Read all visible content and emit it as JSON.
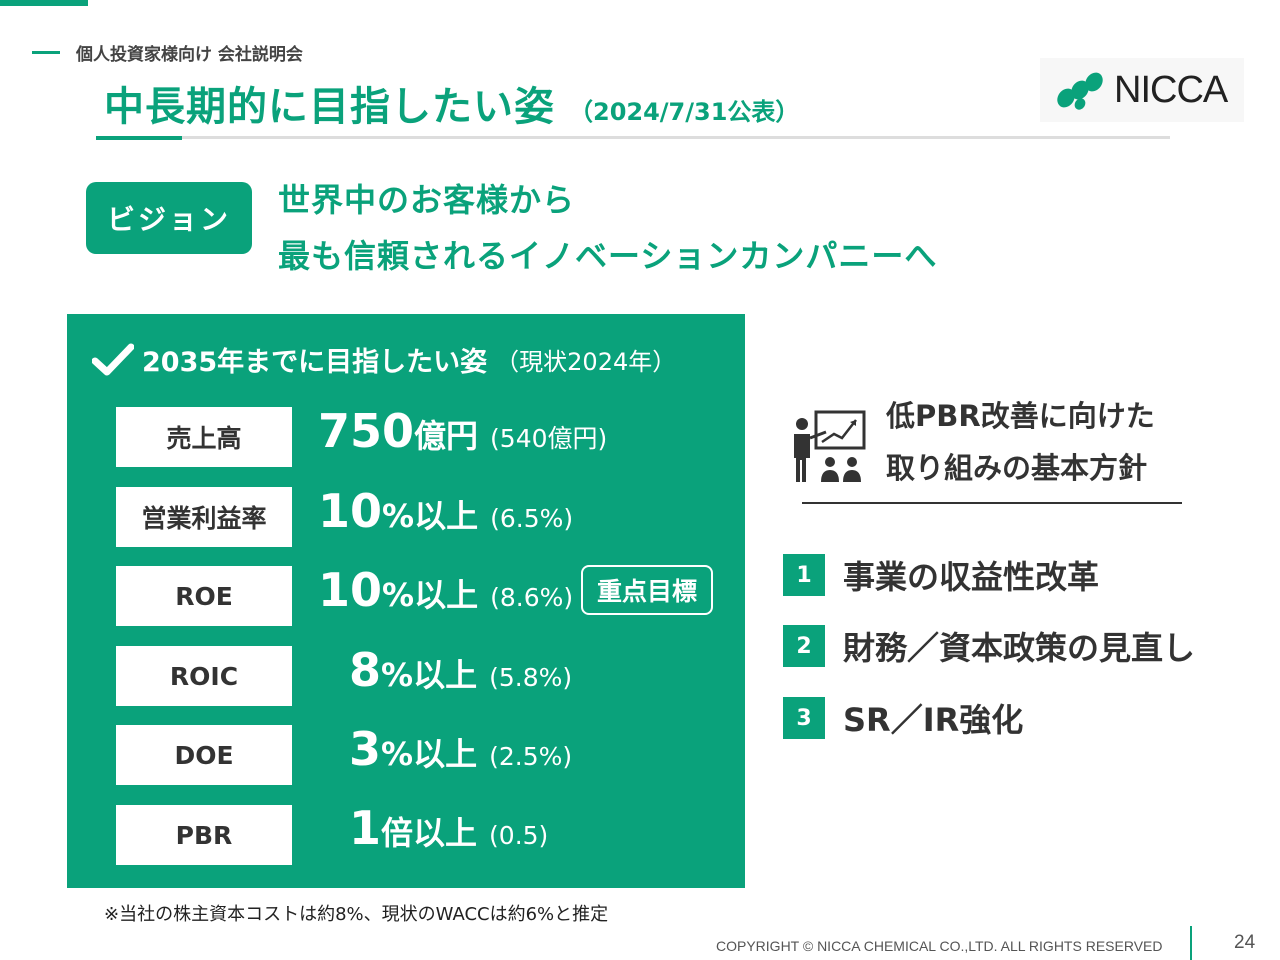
{
  "header": {
    "eyebrow": "個人投資家様向け 会社説明会",
    "title": "中長期的に目指したい姿",
    "date": "（2024/7/31公表）",
    "logo_text": "NICCA"
  },
  "vision": {
    "badge": "ビジョン",
    "line1": "世界中のお客様から",
    "line2": "最も信頼されるイノベーションカンパニーへ"
  },
  "goals": {
    "heading": "2035年までに目指したい姿",
    "heading_note": "（現状2024年）",
    "check_icon": "check-icon",
    "items": [
      {
        "label": "売上高",
        "value": "750",
        "unit": "億円",
        "current": "(540億円)"
      },
      {
        "label": "営業利益率",
        "value": "10",
        "unit": "%以上",
        "current": "(6.5%)"
      },
      {
        "label": "ROE",
        "value": "10",
        "unit": "%以上",
        "current": "(8.6%)"
      },
      {
        "label": "ROIC",
        "value": "8",
        "unit": "%以上",
        "current": "(5.8%)"
      },
      {
        "label": "DOE",
        "value": "3",
        "unit": "%以上",
        "current": "(2.5%)"
      },
      {
        "label": "PBR",
        "value": "1",
        "unit": "倍以上",
        "current": "(0.5)"
      }
    ],
    "focus_badge": "重点目標"
  },
  "footnote": "※当社の株主資本コストは約8%、現状のWACCは約6%と推定",
  "pbr": {
    "icon": "presentation-icon",
    "title_line1": "低PBR改善に向けた",
    "title_line2": "取り組みの基本方針",
    "items": [
      {
        "num": "1",
        "text": "事業の収益性改革"
      },
      {
        "num": "2",
        "text": "財務／資本政策の見直し"
      },
      {
        "num": "3",
        "text": "SR／IR強化"
      }
    ]
  },
  "footer": {
    "copyright": "COPYRIGHT © NICCA CHEMICAL CO.,LTD. ALL RIGHTS RESERVED",
    "page": "24"
  },
  "colors": {
    "accent": "#0aa27b",
    "text": "#333333"
  }
}
